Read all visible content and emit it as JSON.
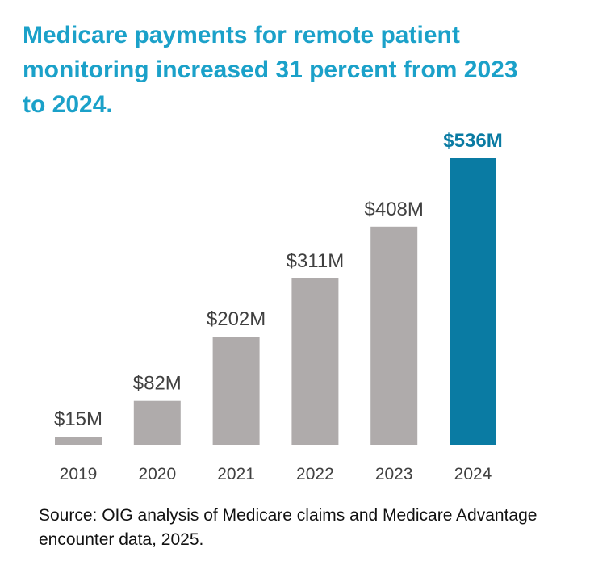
{
  "title": "Medicare payments for remote patient monitoring increased 31 percent from 2023 to 2024.",
  "source": "Source: OIG analysis of Medicare claims and Medicare Advantage encounter data, 2025.",
  "colors": {
    "title": "#1ba1c9",
    "bar_default": "#afabab",
    "bar_highlight": "#0a7ba3",
    "label_default": "#404040",
    "label_highlight": "#0a7ba3",
    "tick": "#404040"
  },
  "chart_data": {
    "type": "bar",
    "categories": [
      "2019",
      "2020",
      "2021",
      "2022",
      "2023",
      "2024"
    ],
    "values": [
      15,
      82,
      202,
      311,
      408,
      536
    ],
    "data_labels": [
      "$15M",
      "$82M",
      "$202M",
      "$311M",
      "$408M",
      "$536M"
    ],
    "highlight_category": "2024",
    "unit": "millions of dollars",
    "ylim": [
      0,
      536
    ],
    "grid": false,
    "legend": "none"
  }
}
